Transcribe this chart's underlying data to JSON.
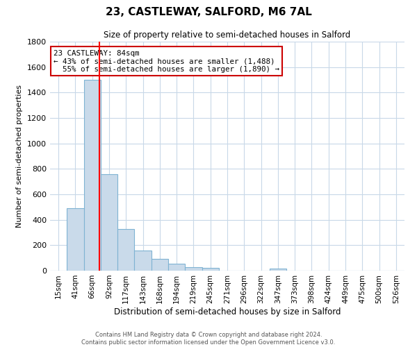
{
  "title": "23, CASTLEWAY, SALFORD, M6 7AL",
  "subtitle": "Size of property relative to semi-detached houses in Salford",
  "xlabel": "Distribution of semi-detached houses by size in Salford",
  "ylabel": "Number of semi-detached properties",
  "bar_labels": [
    "15sqm",
    "41sqm",
    "66sqm",
    "92sqm",
    "117sqm",
    "143sqm",
    "168sqm",
    "194sqm",
    "219sqm",
    "245sqm",
    "271sqm",
    "296sqm",
    "322sqm",
    "347sqm",
    "373sqm",
    "398sqm",
    "424sqm",
    "449sqm",
    "475sqm",
    "500sqm",
    "526sqm"
  ],
  "bar_values": [
    0,
    490,
    1500,
    760,
    325,
    160,
    95,
    55,
    30,
    20,
    0,
    0,
    0,
    15,
    0,
    0,
    0,
    0,
    0,
    0,
    0
  ],
  "bar_color": "#c9daea",
  "bar_edgecolor": "#7fb3d3",
  "property_label": "23 CASTLEWAY: 84sqm",
  "pct_smaller": 43,
  "pct_larger": 55,
  "count_smaller": 1488,
  "count_larger": 1890,
  "annotation_box_edgecolor": "#cc0000",
  "ylim": [
    0,
    1800
  ],
  "yticks": [
    0,
    200,
    400,
    600,
    800,
    1000,
    1200,
    1400,
    1600,
    1800
  ],
  "grid_color": "#c8d8e8",
  "background_color": "#ffffff",
  "footer_line1": "Contains HM Land Registry data © Crown copyright and database right 2024.",
  "footer_line2": "Contains public sector information licensed under the Open Government Licence v3.0."
}
